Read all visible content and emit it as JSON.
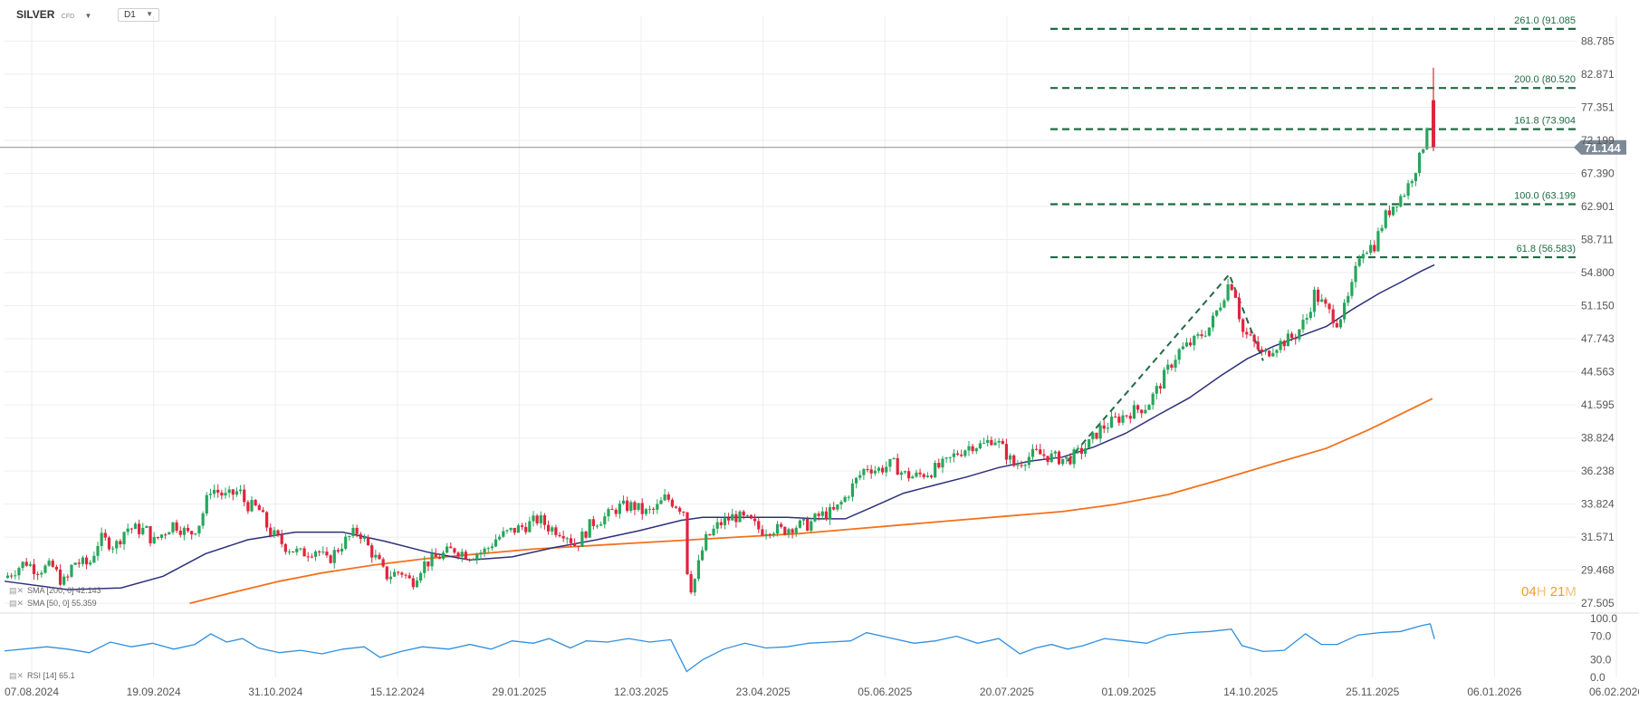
{
  "header": {
    "symbol": "SILVER",
    "symbol_sub": "CFD",
    "timeframe": "D1"
  },
  "indicators": {
    "sma200_label": "SMA [200, 0] 42.143",
    "sma50_label": "SMA [50, 0] 55.359",
    "rsi_label": "RSI [14] 65.1"
  },
  "countdown": {
    "h": "04",
    "h_unit": "H",
    "m": "21",
    "m_unit": "M"
  },
  "colors": {
    "up": "#26a65b",
    "down": "#e0243c",
    "sma50": "#2e2f7a",
    "sma200": "#f2711c",
    "fib": "#1f6b45",
    "rsi": "#2e8fe0",
    "price_tag": "#7d8a96",
    "grid": "#eeeeee"
  },
  "chart_data": {
    "type": "candlestick",
    "title": "SILVER CFD D1",
    "current_price": 71.144,
    "current_price_label": "71.144",
    "y_ticks": [
      "27.505",
      "29.468",
      "31.571",
      "33.824",
      "36.238",
      "38.824",
      "41.595",
      "44.563",
      "47.743",
      "51.150",
      "54.800",
      "58.711",
      "62.901",
      "67.390",
      "72.199",
      "77.351",
      "82.871",
      "88.785"
    ],
    "ylim_log": [
      27.0,
      93.5
    ],
    "x_ticks": [
      "07.08.2024",
      "19.09.2024",
      "31.10.2024",
      "15.12.2024",
      "29.01.2025",
      "12.03.2025",
      "23.04.2025",
      "05.06.2025",
      "20.07.2025",
      "01.09.2025",
      "14.10.2025",
      "25.11.2025",
      "06.01.2026",
      "06.02.2026"
    ],
    "fibonacci": [
      {
        "label": "261.0 (91.085",
        "value": 91.085
      },
      {
        "label": "200.0 (80.520",
        "value": 80.52
      },
      {
        "label": "161.8 (73.904",
        "value": 73.904
      },
      {
        "label": "100.0 (63.199",
        "value": 63.199
      },
      {
        "label": "61.8 (56.583)",
        "value": 56.583
      }
    ],
    "price_path": [
      [
        0,
        29.0
      ],
      [
        20,
        30.0
      ],
      [
        30,
        29.5
      ],
      [
        45,
        29.7
      ],
      [
        55,
        28.7
      ],
      [
        60,
        29.0
      ],
      [
        65,
        30.0
      ],
      [
        80,
        29.8
      ],
      [
        90,
        31.5
      ],
      [
        105,
        31.0
      ],
      [
        115,
        32.2
      ],
      [
        135,
        32.0
      ],
      [
        140,
        31.2
      ],
      [
        160,
        32.5
      ],
      [
        175,
        31.7
      ],
      [
        185,
        32.6
      ],
      [
        195,
        35.0
      ],
      [
        210,
        34.3
      ],
      [
        222,
        34.8
      ],
      [
        228,
        33.8
      ],
      [
        240,
        33.5
      ],
      [
        250,
        32.0
      ],
      [
        265,
        31.0
      ],
      [
        280,
        30.5
      ],
      [
        295,
        30.8
      ],
      [
        305,
        30.0
      ],
      [
        320,
        31.2
      ],
      [
        330,
        31.8
      ],
      [
        335,
        32.0
      ],
      [
        345,
        30.8
      ],
      [
        355,
        29.8
      ],
      [
        360,
        29.1
      ],
      [
        375,
        29.4
      ],
      [
        385,
        28.7
      ],
      [
        395,
        29.8
      ],
      [
        410,
        30.3
      ],
      [
        425,
        30.8
      ],
      [
        440,
        30.4
      ],
      [
        455,
        30.7
      ],
      [
        465,
        31.5
      ],
      [
        480,
        32.0
      ],
      [
        495,
        32.4
      ],
      [
        505,
        32.8
      ],
      [
        515,
        32.2
      ],
      [
        530,
        31.9
      ],
      [
        540,
        31.0
      ],
      [
        555,
        32.5
      ],
      [
        570,
        33.0
      ],
      [
        580,
        33.6
      ],
      [
        595,
        33.7
      ],
      [
        605,
        33.2
      ],
      [
        615,
        33.4
      ],
      [
        625,
        34.3
      ],
      [
        635,
        33.8
      ],
      [
        642,
        33.4
      ],
      [
        646,
        29.0
      ],
      [
        650,
        28.3
      ],
      [
        655,
        29.5
      ],
      [
        662,
        31.3
      ],
      [
        675,
        32.4
      ],
      [
        690,
        33.0
      ],
      [
        705,
        32.6
      ],
      [
        715,
        32.0
      ],
      [
        725,
        32.2
      ],
      [
        735,
        32.0
      ],
      [
        745,
        32.3
      ],
      [
        760,
        32.4
      ],
      [
        770,
        33.0
      ],
      [
        785,
        33.3
      ],
      [
        795,
        34.3
      ],
      [
        805,
        35.5
      ],
      [
        815,
        36.6
      ],
      [
        825,
        36.3
      ],
      [
        840,
        36.8
      ],
      [
        850,
        36.0
      ],
      [
        860,
        35.8
      ],
      [
        875,
        36.2
      ],
      [
        890,
        36.8
      ],
      [
        900,
        37.6
      ],
      [
        915,
        38.3
      ],
      [
        925,
        38.2
      ],
      [
        935,
        38.9
      ],
      [
        945,
        37.8
      ],
      [
        955,
        36.6
      ],
      [
        965,
        37.2
      ],
      [
        975,
        37.6
      ],
      [
        990,
        37.3
      ],
      [
        1005,
        37.1
      ],
      [
        1015,
        37.6
      ],
      [
        1025,
        38.3
      ],
      [
        1035,
        39.5
      ],
      [
        1050,
        40.3
      ],
      [
        1065,
        41.0
      ],
      [
        1080,
        41.5
      ],
      [
        1090,
        43.0
      ],
      [
        1100,
        44.8
      ],
      [
        1110,
        46.5
      ],
      [
        1125,
        47.5
      ],
      [
        1140,
        49.0
      ],
      [
        1150,
        51.5
      ],
      [
        1158,
        53.8
      ],
      [
        1163,
        53.0
      ],
      [
        1170,
        48.5
      ],
      [
        1180,
        47.5
      ],
      [
        1190,
        46.0
      ],
      [
        1200,
        47.0
      ],
      [
        1210,
        47.5
      ],
      [
        1220,
        48.0
      ],
      [
        1232,
        50.0
      ],
      [
        1238,
        52.5
      ],
      [
        1245,
        51.5
      ],
      [
        1252,
        50.5
      ],
      [
        1260,
        49.5
      ],
      [
        1268,
        51.0
      ],
      [
        1275,
        53.5
      ],
      [
        1282,
        57.5
      ],
      [
        1295,
        58.0
      ],
      [
        1305,
        61.5
      ],
      [
        1315,
        63.5
      ],
      [
        1325,
        65.0
      ],
      [
        1332,
        67.5
      ],
      [
        1338,
        69.5
      ],
      [
        1343,
        72.5
      ],
      [
        1348,
        78.5
      ]
    ],
    "last_candle": {
      "open": 78.5,
      "high": 84.0,
      "low": 70.6,
      "close": 71.144
    },
    "sma50_path": [
      [
        0,
        28.8
      ],
      [
        60,
        28.3
      ],
      [
        110,
        28.4
      ],
      [
        150,
        29.1
      ],
      [
        190,
        30.5
      ],
      [
        230,
        31.4
      ],
      [
        275,
        31.9
      ],
      [
        320,
        31.9
      ],
      [
        360,
        31.3
      ],
      [
        400,
        30.6
      ],
      [
        440,
        30.1
      ],
      [
        480,
        30.3
      ],
      [
        520,
        30.9
      ],
      [
        560,
        31.4
      ],
      [
        600,
        32.0
      ],
      [
        640,
        32.7
      ],
      [
        660,
        32.9
      ],
      [
        700,
        32.9
      ],
      [
        740,
        32.9
      ],
      [
        770,
        32.8
      ],
      [
        795,
        32.8
      ],
      [
        820,
        33.6
      ],
      [
        850,
        34.6
      ],
      [
        880,
        35.2
      ],
      [
        910,
        35.8
      ],
      [
        940,
        36.5
      ],
      [
        970,
        37.0
      ],
      [
        1000,
        37.3
      ],
      [
        1030,
        38.1
      ],
      [
        1060,
        39.2
      ],
      [
        1090,
        40.7
      ],
      [
        1120,
        42.2
      ],
      [
        1150,
        44.2
      ],
      [
        1175,
        45.8
      ],
      [
        1200,
        47.0
      ],
      [
        1225,
        48.0
      ],
      [
        1250,
        49.0
      ],
      [
        1275,
        50.8
      ],
      [
        1300,
        52.5
      ],
      [
        1320,
        53.7
      ],
      [
        1340,
        55.0
      ],
      [
        1352,
        55.7
      ]
    ],
    "sma200_path": [
      [
        175,
        27.5
      ],
      [
        220,
        28.2
      ],
      [
        260,
        28.8
      ],
      [
        300,
        29.3
      ],
      [
        350,
        29.8
      ],
      [
        400,
        30.2
      ],
      [
        450,
        30.5
      ],
      [
        500,
        30.8
      ],
      [
        550,
        31.0
      ],
      [
        600,
        31.2
      ],
      [
        650,
        31.4
      ],
      [
        700,
        31.6
      ],
      [
        750,
        31.8
      ],
      [
        800,
        32.1
      ],
      [
        850,
        32.4
      ],
      [
        900,
        32.7
      ],
      [
        950,
        33.0
      ],
      [
        1000,
        33.3
      ],
      [
        1050,
        33.8
      ],
      [
        1100,
        34.5
      ],
      [
        1150,
        35.6
      ],
      [
        1200,
        36.8
      ],
      [
        1250,
        38.0
      ],
      [
        1290,
        39.5
      ],
      [
        1320,
        40.8
      ],
      [
        1350,
        42.14
      ]
    ],
    "fib_swing_line": [
      [
        1005,
        37.0
      ],
      [
        1158,
        54.6
      ],
      [
        1190,
        45.6
      ]
    ],
    "rsi": {
      "levels": [
        "100.0",
        "70.0",
        "30.0",
        "0.0"
      ],
      "label_values": [
        100,
        70,
        30,
        0
      ],
      "path": [
        [
          0,
          45
        ],
        [
          40,
          52
        ],
        [
          60,
          48
        ],
        [
          80,
          42
        ],
        [
          100,
          60
        ],
        [
          120,
          52
        ],
        [
          140,
          58
        ],
        [
          160,
          48
        ],
        [
          180,
          56
        ],
        [
          195,
          74
        ],
        [
          210,
          60
        ],
        [
          225,
          66
        ],
        [
          240,
          50
        ],
        [
          260,
          42
        ],
        [
          280,
          46
        ],
        [
          300,
          40
        ],
        [
          320,
          48
        ],
        [
          340,
          52
        ],
        [
          355,
          34
        ],
        [
          375,
          44
        ],
        [
          395,
          52
        ],
        [
          420,
          48
        ],
        [
          440,
          56
        ],
        [
          460,
          48
        ],
        [
          480,
          62
        ],
        [
          500,
          58
        ],
        [
          515,
          66
        ],
        [
          535,
          50
        ],
        [
          550,
          62
        ],
        [
          570,
          60
        ],
        [
          590,
          66
        ],
        [
          610,
          60
        ],
        [
          630,
          64
        ],
        [
          645,
          10
        ],
        [
          660,
          30
        ],
        [
          680,
          48
        ],
        [
          700,
          58
        ],
        [
          720,
          50
        ],
        [
          740,
          52
        ],
        [
          760,
          58
        ],
        [
          780,
          60
        ],
        [
          800,
          62
        ],
        [
          815,
          76
        ],
        [
          840,
          66
        ],
        [
          860,
          58
        ],
        [
          880,
          62
        ],
        [
          900,
          70
        ],
        [
          920,
          58
        ],
        [
          940,
          66
        ],
        [
          960,
          40
        ],
        [
          975,
          50
        ],
        [
          990,
          56
        ],
        [
          1005,
          48
        ],
        [
          1020,
          54
        ],
        [
          1040,
          66
        ],
        [
          1060,
          62
        ],
        [
          1080,
          58
        ],
        [
          1100,
          72
        ],
        [
          1120,
          76
        ],
        [
          1140,
          78
        ],
        [
          1160,
          82
        ],
        [
          1170,
          54
        ],
        [
          1190,
          44
        ],
        [
          1210,
          46
        ],
        [
          1230,
          74
        ],
        [
          1245,
          56
        ],
        [
          1260,
          56
        ],
        [
          1280,
          72
        ],
        [
          1300,
          76
        ],
        [
          1320,
          78
        ],
        [
          1340,
          88
        ],
        [
          1348,
          91
        ],
        [
          1352,
          65.1
        ]
      ]
    }
  }
}
